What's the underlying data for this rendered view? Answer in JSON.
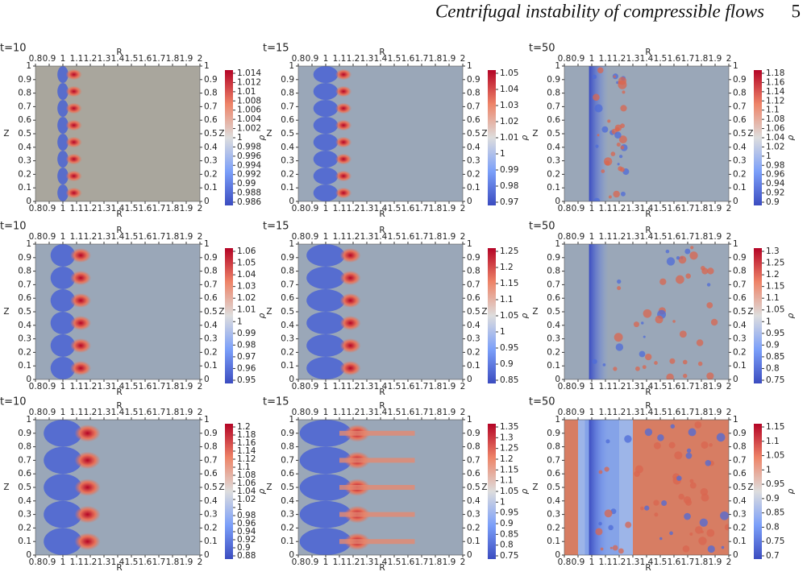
{
  "header": {
    "title": "Centrifugal instability of compressible flows",
    "page": "5"
  },
  "axes": {
    "x_label": "R",
    "z_label": "Z",
    "colorbar_label": "ρ",
    "r_ticks": [
      0.8,
      0.9,
      1,
      1.1,
      1.2,
      1.3,
      1.4,
      1.5,
      1.6,
      1.7,
      1.8,
      1.9,
      2
    ],
    "z_ticks": [
      0,
      0.1,
      0.2,
      0.3,
      0.4,
      0.5,
      0.6,
      0.7,
      0.8,
      0.9,
      1
    ]
  },
  "panels": [
    {
      "time": "t=10",
      "colorbar_ticks": [
        1.014,
        1.012,
        1.01,
        1.008,
        1.006,
        1.004,
        1.002,
        1,
        0.998,
        0.996,
        0.994,
        0.992,
        0.99,
        0.988,
        0.986
      ]
    },
    {
      "time": "t=15",
      "colorbar_ticks": [
        1.05,
        1.04,
        1.03,
        1.02,
        1.01,
        1,
        0.99,
        0.98,
        0.97
      ]
    },
    {
      "time": "t=50",
      "colorbar_ticks": [
        1.18,
        1.16,
        1.14,
        1.12,
        1.1,
        1.08,
        1.06,
        1.04,
        1.02,
        1,
        0.98,
        0.96,
        0.94,
        0.92,
        0.9
      ]
    },
    {
      "time": "t=10",
      "colorbar_ticks": [
        1.06,
        1.05,
        1.04,
        1.03,
        1.02,
        1.01,
        1,
        0.99,
        0.98,
        0.97,
        0.96,
        0.95
      ]
    },
    {
      "time": "t=15",
      "colorbar_ticks": [
        1.25,
        1.2,
        1.15,
        1.1,
        1.05,
        1,
        0.95,
        0.9,
        0.85
      ]
    },
    {
      "time": "t=50",
      "colorbar_ticks": [
        1.3,
        1.25,
        1.2,
        1.15,
        1.1,
        1.05,
        1,
        0.95,
        0.9,
        0.85,
        0.8,
        0.75
      ]
    },
    {
      "time": "t=10",
      "colorbar_ticks": [
        1.2,
        1.18,
        1.16,
        1.14,
        1.12,
        1.1,
        1.08,
        1.06,
        1.04,
        1.02,
        1,
        0.98,
        0.96,
        0.94,
        0.92,
        0.9,
        0.88
      ]
    },
    {
      "time": "t=15",
      "colorbar_ticks": [
        1.35,
        1.3,
        1.25,
        1.2,
        1.15,
        1.1,
        1.05,
        1,
        0.95,
        0.9,
        0.85,
        0.8,
        0.75
      ]
    },
    {
      "time": "t=50",
      "colorbar_ticks": [
        1.15,
        1.1,
        1.05,
        1,
        0.95,
        0.9,
        0.85,
        0.8,
        0.75,
        0.7
      ]
    }
  ]
}
